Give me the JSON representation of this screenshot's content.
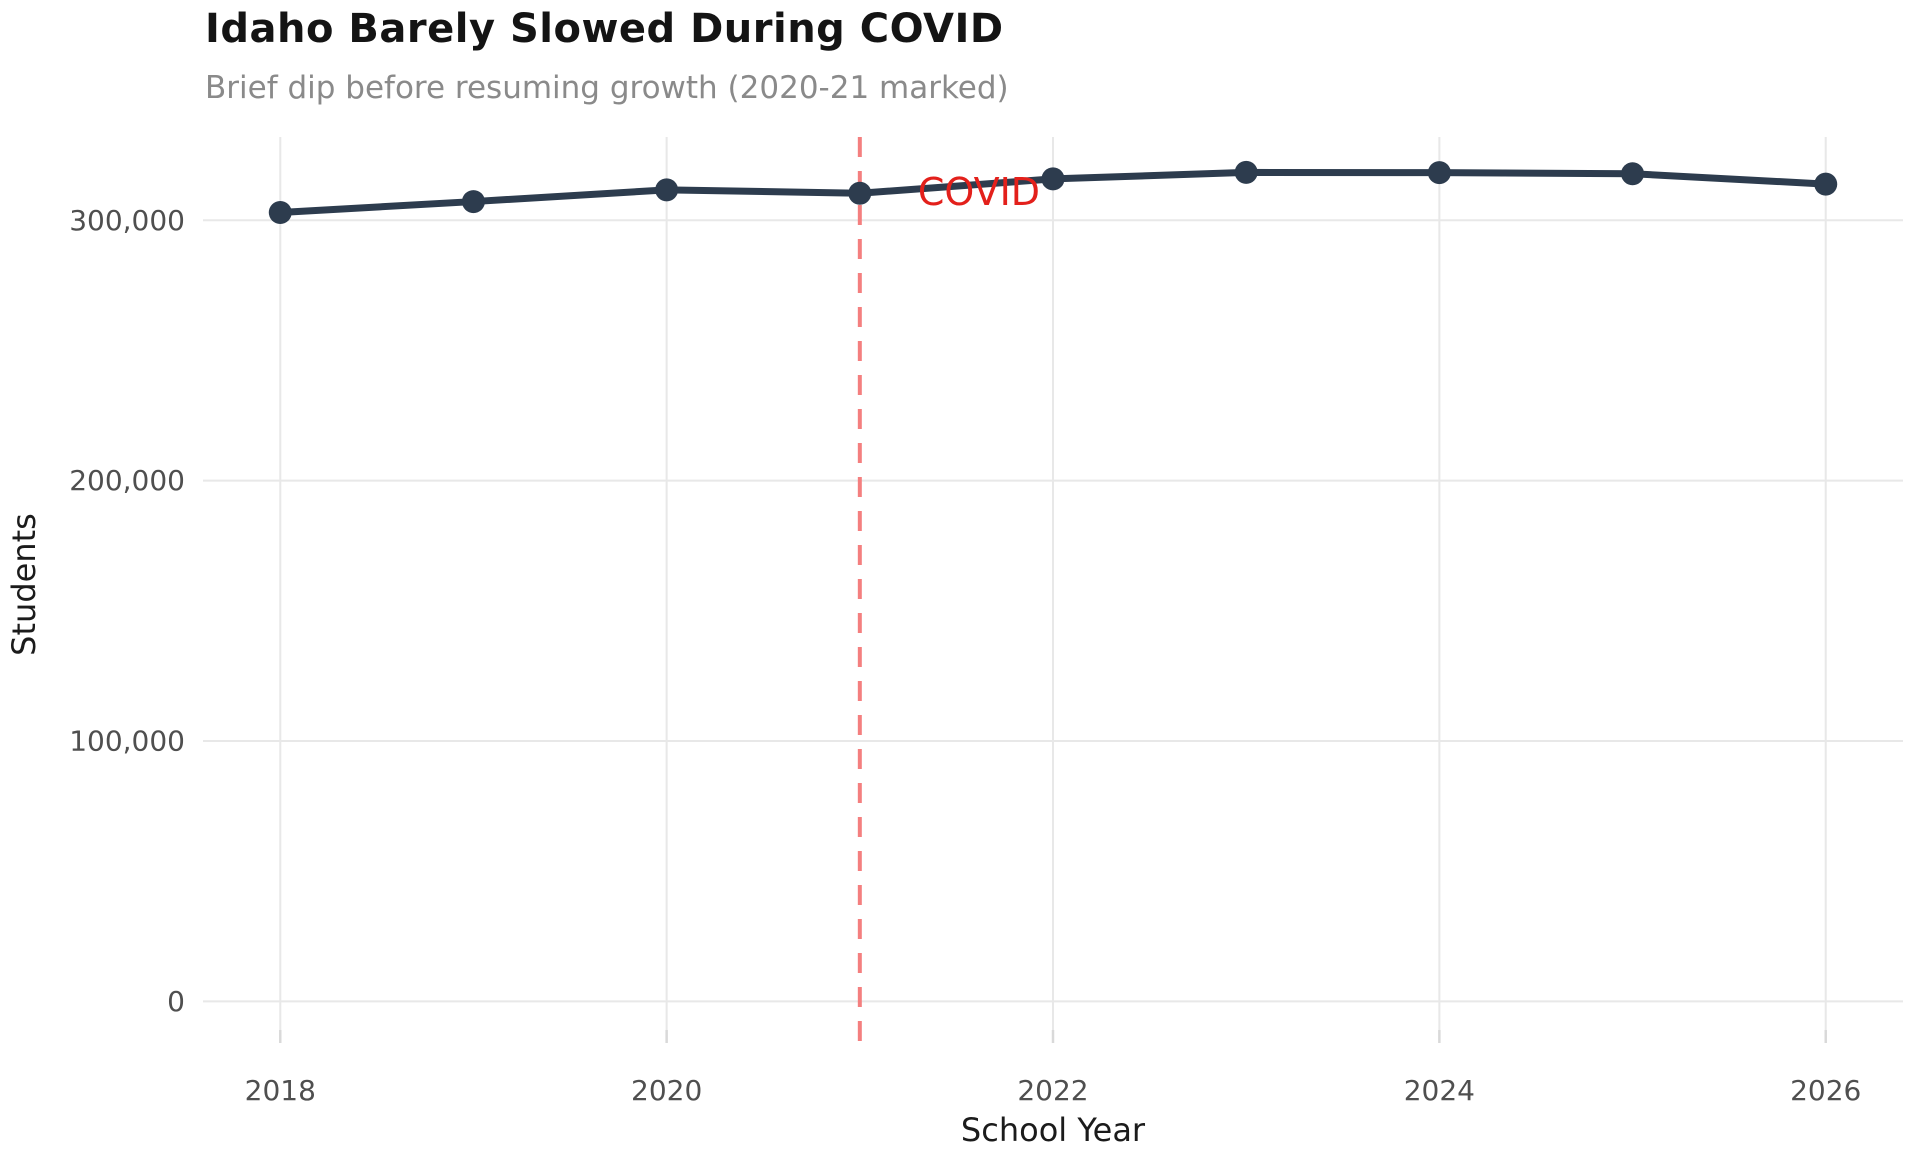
{
  "figure": {
    "background": "#ffffff"
  },
  "chart_data": {
    "type": "line",
    "title": "Idaho Barely Slowed During COVID",
    "subtitle": "Brief dip before resuming growth (2020-21 marked)",
    "xlabel": "School Year",
    "ylabel": "Students",
    "x": [
      2018,
      2019,
      2020,
      2021,
      2022,
      2023,
      2024,
      2025,
      2026
    ],
    "series": [
      {
        "name": "Students",
        "values": [
          303000,
          307200,
          311700,
          310400,
          315900,
          318400,
          318300,
          317900,
          313900
        ]
      }
    ],
    "x_ticks": {
      "values": [
        2018,
        2020,
        2022,
        2024,
        2026
      ],
      "labels": [
        "2018",
        "2020",
        "2022",
        "2024",
        "2026"
      ]
    },
    "y_ticks": {
      "values": [
        0,
        100000,
        200000,
        300000
      ],
      "labels": [
        "0",
        "100,000",
        "200,000",
        "300,000"
      ]
    },
    "xlim": [
      2017.6,
      2026.4
    ],
    "ylim": [
      -11000,
      332000
    ],
    "grid": true,
    "legend": false,
    "annotation": {
      "type": "vline-dashed",
      "x": 2021,
      "label": "COVID",
      "label_x": 2021.3,
      "label_y": 310800
    },
    "colors": {
      "line": "#2d3c4e",
      "marker": "#2d3c4e",
      "grid": "#e8e8e8",
      "tick_mark": "#d9d9d9",
      "vline": "#f47f7f",
      "annotation": "#e3201b",
      "title": "#141414",
      "subtitle": "#8a8a8a",
      "tick_label": "#4f4f4f",
      "axis_title": "#1b1b1b"
    }
  }
}
